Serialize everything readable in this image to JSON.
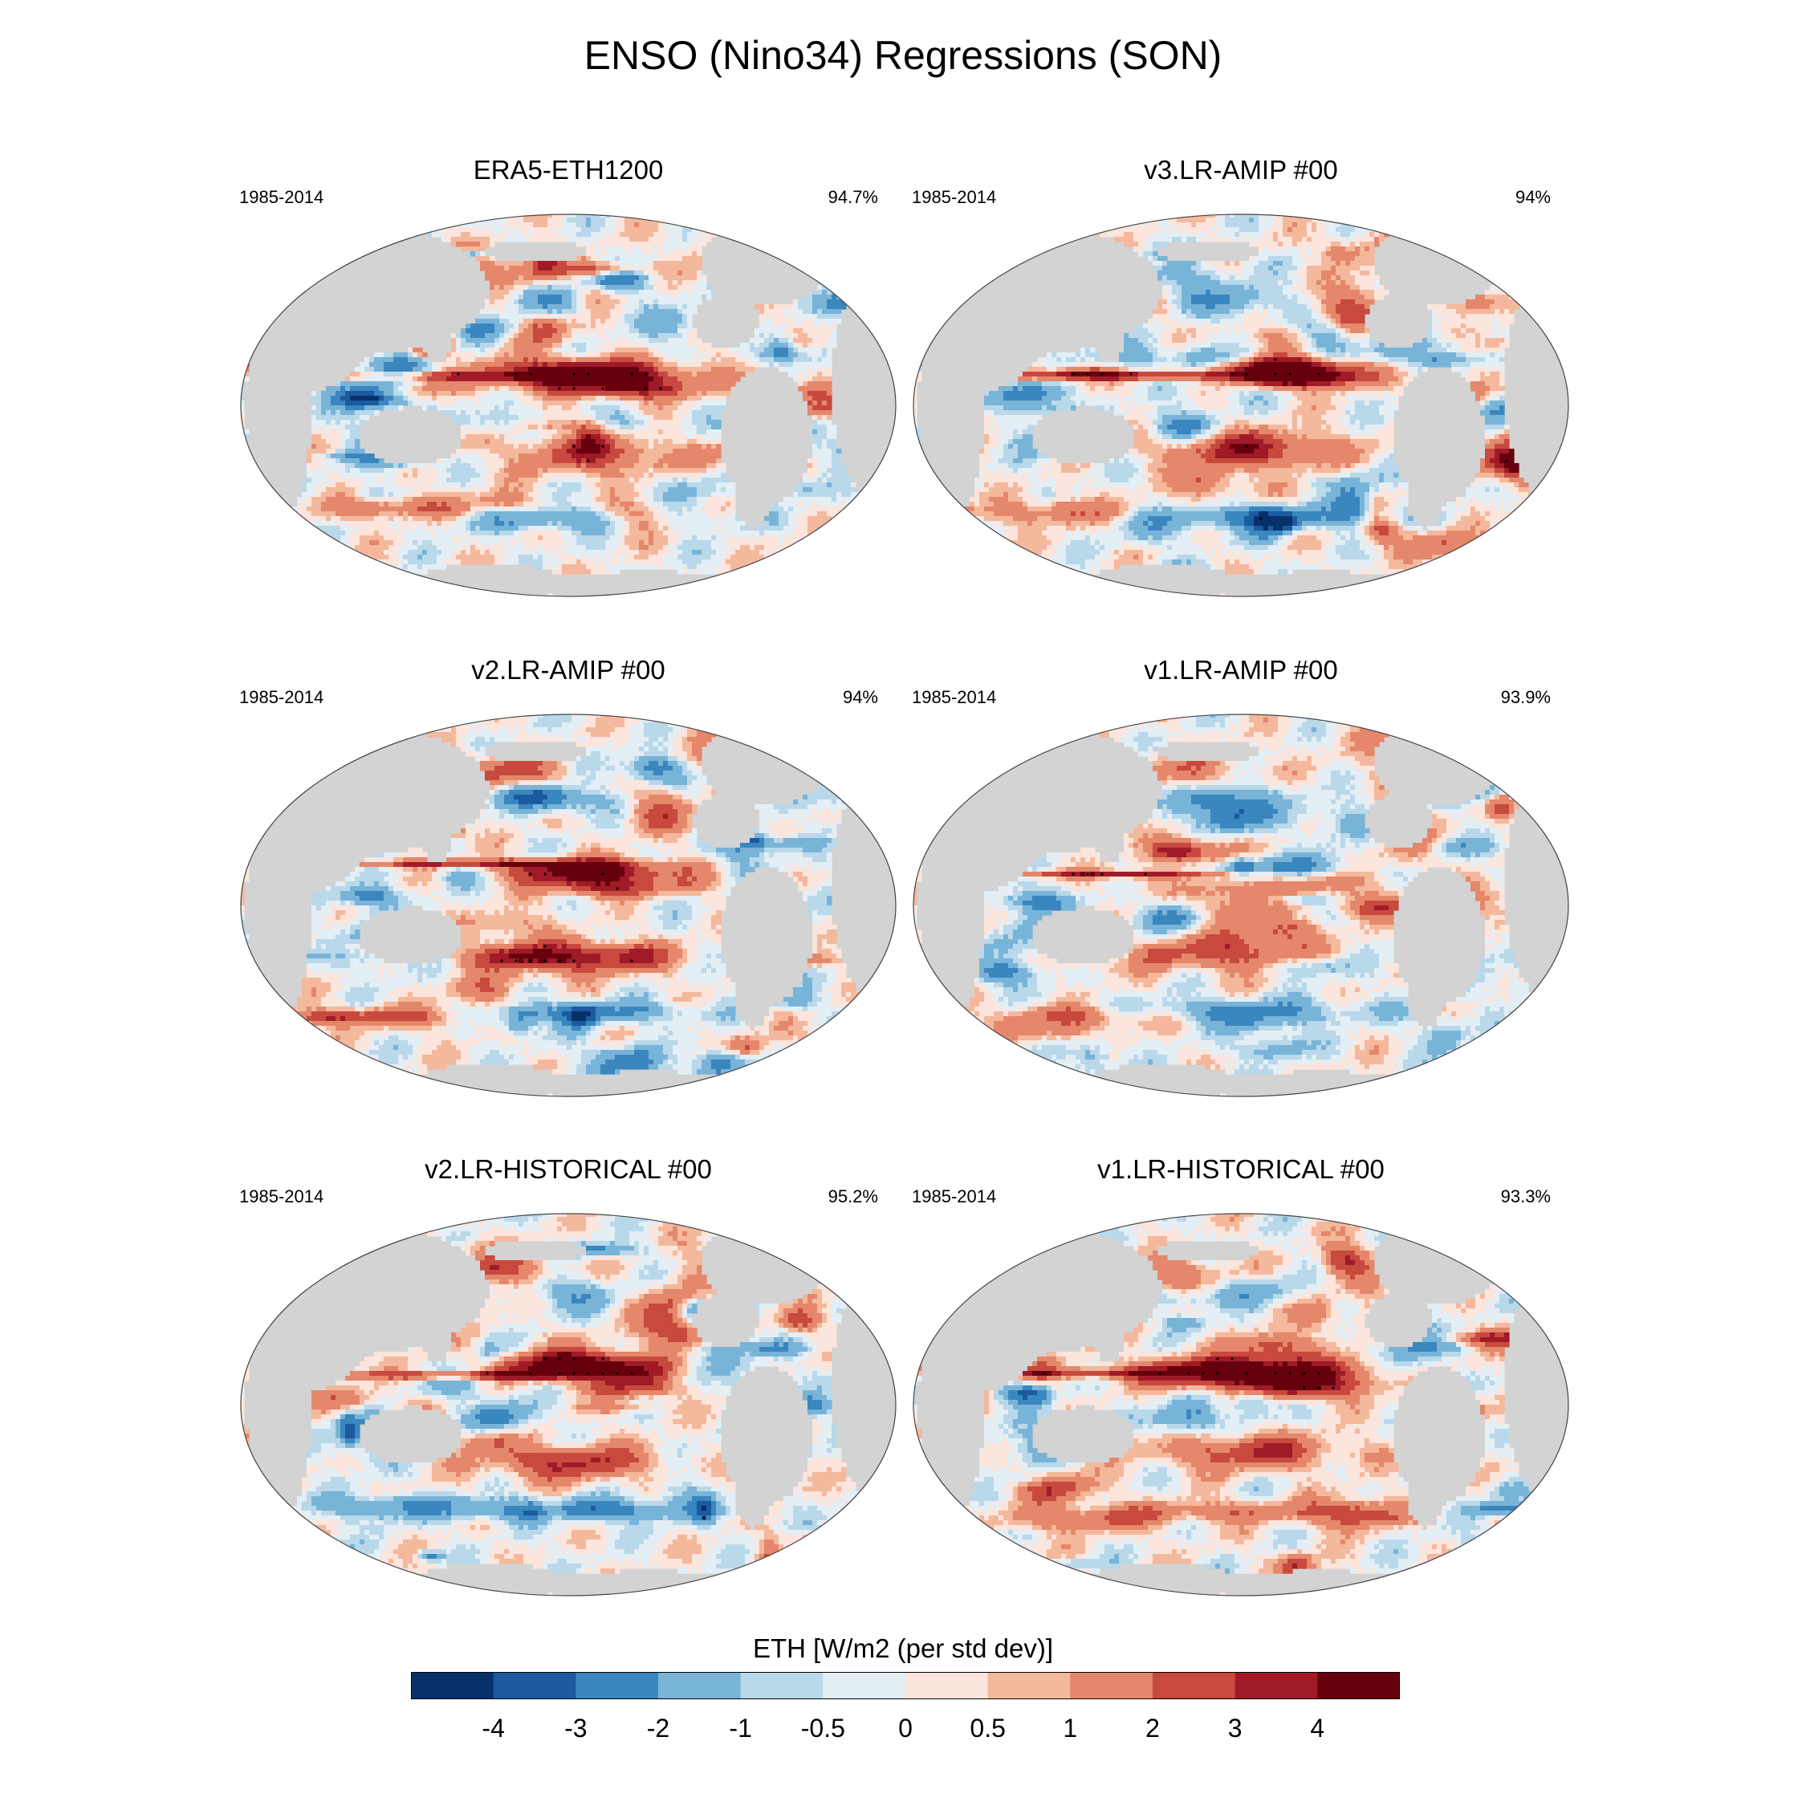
{
  "title": "ENSO (Nino34) Regressions (SON)",
  "chart_data": {
    "type": "heatmap",
    "title": "ENSO (Nino34) Regressions (SON)",
    "colorbar": {
      "label": "ETH [W/m2 (per std dev)]",
      "tick_labels": [
        "-4",
        "-3",
        "-2",
        "-1",
        "-0.5",
        "0",
        "0.5",
        "1",
        "2",
        "3",
        "4"
      ],
      "colors": [
        "#08306b",
        "#1c5aa0",
        "#3a86bf",
        "#78b4d8",
        "#b9d8ea",
        "#e4eef5",
        "#fbe5dc",
        "#f4b89c",
        "#e5876b",
        "#c8493e",
        "#a01a28",
        "#67000d"
      ]
    },
    "panels": [
      {
        "title": "ERA5-ETH1200",
        "period": "1985-2014",
        "percent": "94.7%"
      },
      {
        "title": "v3.LR-AMIP  #00",
        "period": "1985-2014",
        "percent": "94%"
      },
      {
        "title": "v2.LR-AMIP  #00",
        "period": "1985-2014",
        "percent": "94%"
      },
      {
        "title": "v1.LR-AMIP  #00",
        "period": "1985-2014",
        "percent": "93.9%"
      },
      {
        "title": "v2.LR-HISTORICAL  #00",
        "period": "1985-2014",
        "percent": "95.2%"
      },
      {
        "title": "v1.LR-HISTORICAL  #00",
        "period": "1985-2014",
        "percent": "93.3%"
      }
    ]
  }
}
